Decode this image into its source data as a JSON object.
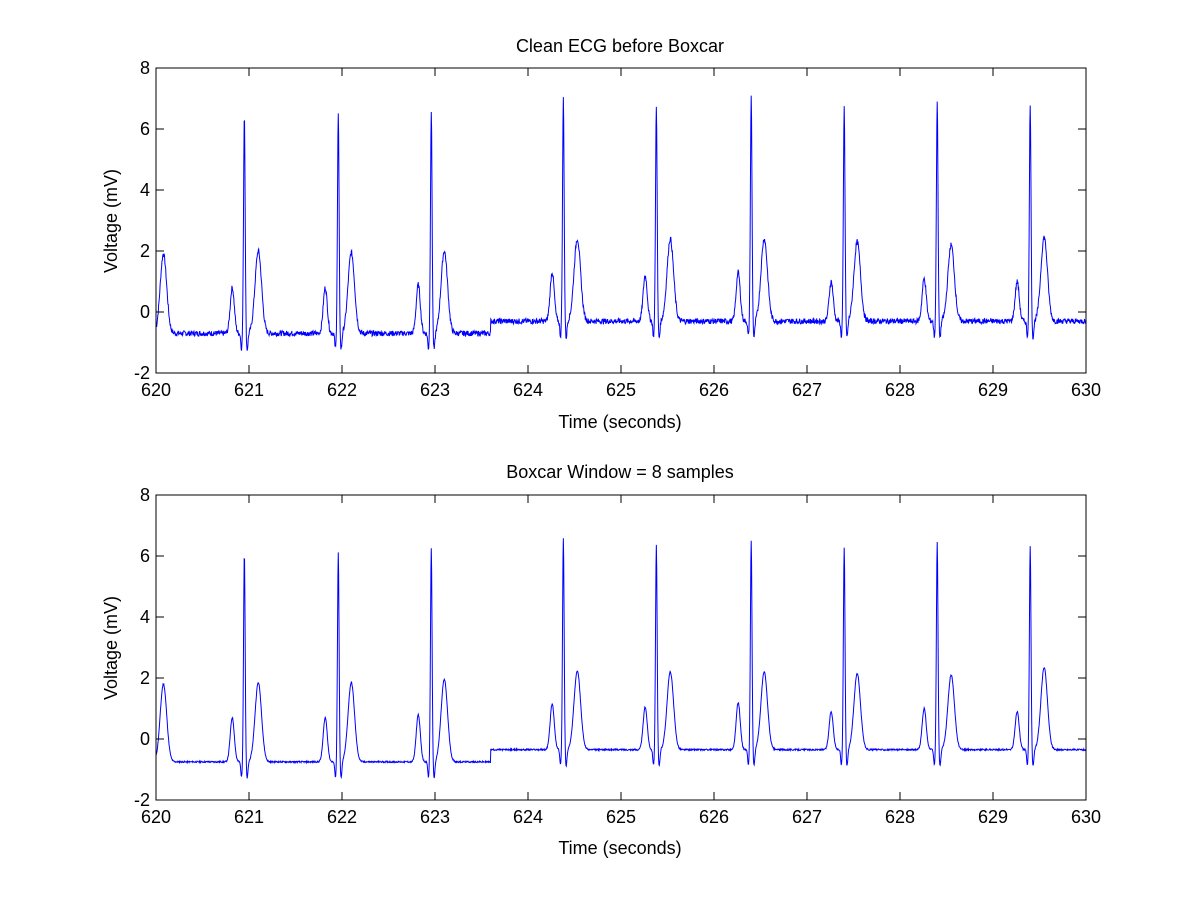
{
  "chart_data": [
    {
      "type": "line",
      "title": "Clean ECG before Boxcar",
      "xlabel": "Time (seconds)",
      "ylabel": "Voltage (mV)",
      "xlim": [
        620,
        630
      ],
      "ylim": [
        -2,
        8
      ],
      "xticks": [
        620,
        621,
        622,
        623,
        624,
        625,
        626,
        627,
        628,
        629,
        630
      ],
      "yticks": [
        -2,
        0,
        2,
        4,
        6,
        8
      ],
      "grid": false,
      "line_color": "#0000ff",
      "baseline_segments": [
        {
          "x": [
            620.0,
            623.6
          ],
          "y": -0.7
        },
        {
          "x": [
            623.6,
            630.0
          ],
          "y": -0.3
        }
      ],
      "beats": [
        {
          "p_time": 620.82,
          "p_amp": 0.8,
          "r_time": 620.95,
          "r_amp": 6.5,
          "t_time": 621.1,
          "t_amp": 2.0
        },
        {
          "p_time": 621.82,
          "p_amp": 0.8,
          "r_time": 621.96,
          "r_amp": 6.5,
          "t_time": 622.1,
          "t_amp": 1.95
        },
        {
          "p_time": 622.82,
          "p_amp": 0.9,
          "r_time": 622.96,
          "r_amp": 6.6,
          "t_time": 623.1,
          "t_amp": 2.0
        },
        {
          "p_time": 624.26,
          "p_amp": 1.3,
          "r_time": 624.38,
          "r_amp": 7.0,
          "t_time": 624.53,
          "t_amp": 2.4
        },
        {
          "p_time": 625.26,
          "p_amp": 1.2,
          "r_time": 625.38,
          "r_amp": 6.8,
          "t_time": 625.53,
          "t_amp": 2.4
        },
        {
          "p_time": 626.26,
          "p_amp": 1.3,
          "r_time": 626.4,
          "r_amp": 7.05,
          "t_time": 626.54,
          "t_amp": 2.4
        },
        {
          "p_time": 627.26,
          "p_amp": 1.0,
          "r_time": 627.4,
          "r_amp": 6.7,
          "t_time": 627.54,
          "t_amp": 2.3
        },
        {
          "p_time": 628.26,
          "p_amp": 1.1,
          "r_time": 628.4,
          "r_amp": 6.9,
          "t_time": 628.55,
          "t_amp": 2.2
        },
        {
          "p_time": 629.26,
          "p_amp": 1.0,
          "r_time": 629.4,
          "r_amp": 6.85,
          "t_time": 629.55,
          "t_amp": 2.45
        }
      ],
      "initial_t_wave": {
        "time": 620.08,
        "amp": 1.9
      }
    },
    {
      "type": "line",
      "title": "Boxcar Window = 8 samples",
      "xlabel": "Time (seconds)",
      "ylabel": "Voltage (mV)",
      "xlim": [
        620,
        630
      ],
      "ylim": [
        -2,
        8
      ],
      "xticks": [
        620,
        621,
        622,
        623,
        624,
        625,
        626,
        627,
        628,
        629,
        630
      ],
      "yticks": [
        -2,
        0,
        2,
        4,
        6,
        8
      ],
      "grid": false,
      "line_color": "#0000ff",
      "baseline_segments": [
        {
          "x": [
            620.0,
            623.6
          ],
          "y": -0.75
        },
        {
          "x": [
            623.6,
            630.0
          ],
          "y": -0.35
        }
      ],
      "beats": [
        {
          "p_time": 620.82,
          "p_amp": 0.7,
          "r_time": 620.95,
          "r_amp": 6.1,
          "t_time": 621.1,
          "t_amp": 1.85
        },
        {
          "p_time": 621.82,
          "p_amp": 0.7,
          "r_time": 621.96,
          "r_amp": 6.1,
          "t_time": 622.1,
          "t_amp": 1.85
        },
        {
          "p_time": 622.82,
          "p_amp": 0.8,
          "r_time": 622.96,
          "r_amp": 6.25,
          "t_time": 623.1,
          "t_amp": 1.95
        },
        {
          "p_time": 624.26,
          "p_amp": 1.15,
          "r_time": 624.38,
          "r_amp": 6.6,
          "t_time": 624.53,
          "t_amp": 2.25
        },
        {
          "p_time": 625.26,
          "p_amp": 1.05,
          "r_time": 625.38,
          "r_amp": 6.35,
          "t_time": 625.53,
          "t_amp": 2.2
        },
        {
          "p_time": 626.26,
          "p_amp": 1.2,
          "r_time": 626.4,
          "r_amp": 6.5,
          "t_time": 626.54,
          "t_amp": 2.2
        },
        {
          "p_time": 627.26,
          "p_amp": 0.9,
          "r_time": 627.4,
          "r_amp": 6.3,
          "t_time": 627.54,
          "t_amp": 2.15
        },
        {
          "p_time": 628.26,
          "p_amp": 1.0,
          "r_time": 628.4,
          "r_amp": 6.45,
          "t_time": 628.55,
          "t_amp": 2.1
        },
        {
          "p_time": 629.26,
          "p_amp": 0.9,
          "r_time": 629.4,
          "r_amp": 6.3,
          "t_time": 629.55,
          "t_amp": 2.35
        }
      ],
      "initial_t_wave": {
        "time": 620.08,
        "amp": 1.8
      }
    }
  ]
}
